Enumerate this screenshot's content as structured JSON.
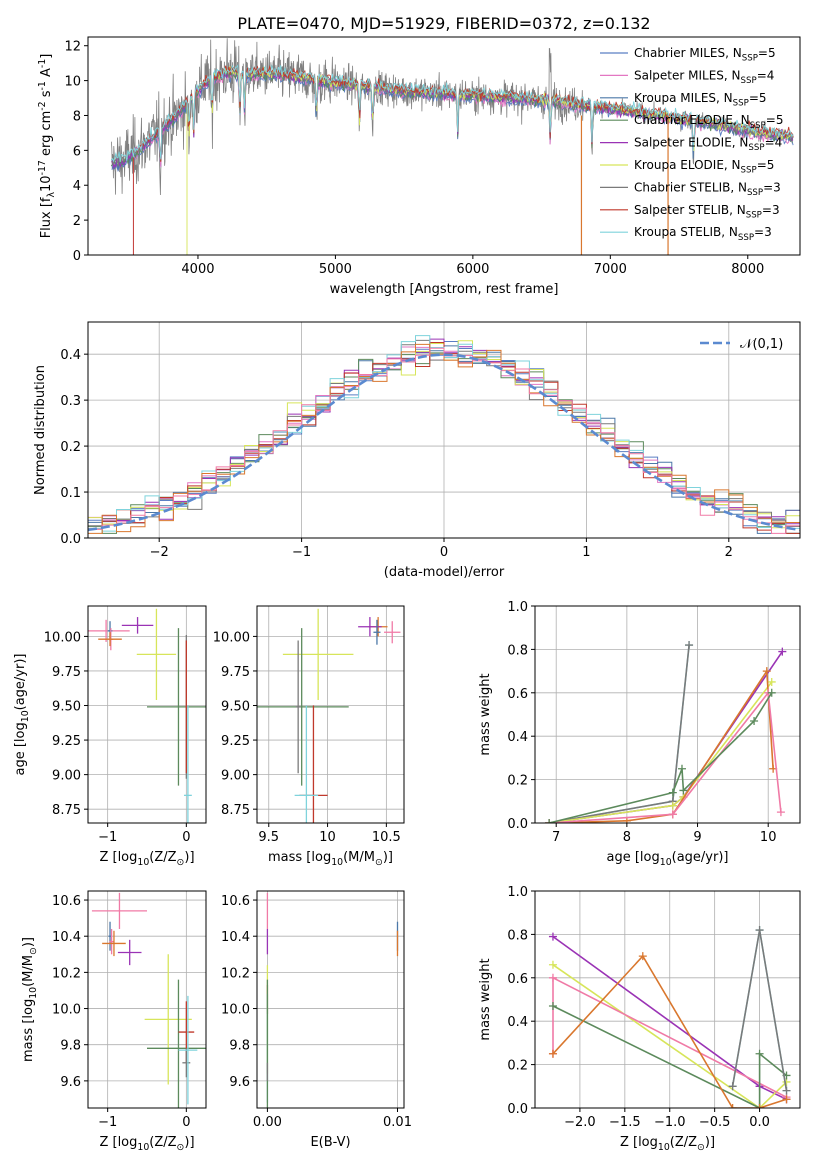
{
  "colors": {
    "chabrier_miles": "#5b7fc4",
    "salpeter_miles": "#e377c2",
    "kroupa_miles": "#4c78a8",
    "chabrier_elodie": "#5c8a5c",
    "salpeter_elodie": "#9a33b5",
    "kroupa_elodie": "#d7e55a",
    "chabrier_stelib": "#7a7a7a",
    "salpeter_stelib": "#c0392b",
    "kroupa_stelib": "#7fd3dc",
    "orange": "#d9772e",
    "pink": "#f07aa6",
    "normal": "#5b8ad0",
    "grid": "#b0b0b0"
  },
  "chart_data": [
    {
      "id": "spectrum",
      "type": "line",
      "title": "PLATE=0470, MJD=51929, FIBERID=0372, z=0.132",
      "xlabel": "wavelength [Angstrom, rest frame]",
      "ylabel": "Flux [f$_\\lambda$10$^{-17}$ erg cm$^{-2}$ s$^{-1}$ A$^{-1}$]",
      "xlim": [
        3200,
        8380
      ],
      "ylim": [
        0,
        12.5
      ],
      "xticks": [
        4000,
        5000,
        6000,
        7000,
        8000
      ],
      "yticks": [
        0,
        2,
        4,
        6,
        8,
        10,
        12
      ],
      "grid": false,
      "legend_position": "top-right",
      "series": [
        {
          "name": "Chabrier MILES, N$_{SSP}$=5",
          "color_key": "chabrier_miles"
        },
        {
          "name": "Salpeter MILES, N$_{SSP}$=4",
          "color_key": "salpeter_miles"
        },
        {
          "name": "Kroupa MILES, N$_{SSP}$=5",
          "color_key": "kroupa_miles"
        },
        {
          "name": "Chabrier ELODIE, N$_{SSP}$=5",
          "color_key": "chabrier_elodie"
        },
        {
          "name": "Salpeter ELODIE, N$_{SSP}$=4",
          "color_key": "salpeter_elodie"
        },
        {
          "name": "Kroupa ELODIE, N$_{SSP}$=5",
          "color_key": "kroupa_elodie"
        },
        {
          "name": "Chabrier STELIB, N$_{SSP}$=3",
          "color_key": "chabrier_stelib"
        },
        {
          "name": "Salpeter STELIB, N$_{SSP}$=3",
          "color_key": "salpeter_stelib"
        },
        {
          "name": "Kroupa STELIB, N$_{SSP}$=3",
          "color_key": "kroupa_stelib"
        }
      ],
      "model_continuum": {
        "x": [
          3350,
          3450,
          3550,
          3650,
          3750,
          3850,
          3950,
          4050,
          4150,
          4250,
          4350,
          4500,
          4650,
          4800,
          4950,
          5100,
          5300,
          5500,
          5700,
          5900,
          6100,
          6300,
          6500,
          6700,
          6900,
          7100,
          7300,
          7500,
          7700,
          7900,
          8100,
          8300
        ],
        "y": [
          5.2,
          5.4,
          5.9,
          6.6,
          7.3,
          8.0,
          9.0,
          9.8,
          10.3,
          10.5,
          10.4,
          10.4,
          10.3,
          10.1,
          9.9,
          9.8,
          9.6,
          9.4,
          9.3,
          9.2,
          9.1,
          9.0,
          8.9,
          8.7,
          8.5,
          8.3,
          8.1,
          7.8,
          7.6,
          7.3,
          7.0,
          6.8
        ]
      }
    },
    {
      "id": "residuals",
      "type": "line",
      "xlabel": "(data-model)/error",
      "ylabel": "Normed distribution",
      "xlim": [
        -2.5,
        2.5
      ],
      "ylim": [
        0,
        0.47
      ],
      "xticks": [
        -2,
        -1,
        0,
        1,
        2
      ],
      "yticks": [
        0.0,
        0.1,
        0.2,
        0.3,
        0.4
      ],
      "grid": true,
      "legend_position": "top-right",
      "legend": "$\\mathcal{N}(0,1)$",
      "bin_width": 0.1
    },
    {
      "id": "age_vs_Z",
      "type": "scatter",
      "xlabel": "Z [log$_{10}$(Z/Z$_\\odot$)]",
      "ylabel": "age  [log$_{10}$(age/yr)]",
      "xlim": [
        -1.25,
        0.25
      ],
      "ylim": [
        8.65,
        10.22
      ],
      "xticks": [
        -1,
        0
      ],
      "yticks": [
        8.75,
        9.0,
        9.25,
        9.5,
        9.75,
        10.0
      ],
      "grid": true,
      "points": [
        {
          "x": -1.02,
          "y": 10.04,
          "xerr": 0.3,
          "yerr": 0.08,
          "c": "pink"
        },
        {
          "x": -0.97,
          "y": 10.04,
          "xerr": 0.03,
          "yerr": 0.07,
          "c": "kroupa_miles"
        },
        {
          "x": -0.96,
          "y": 9.98,
          "xerr": 0.03,
          "yerr": 0.08,
          "c": "pink"
        },
        {
          "x": -0.97,
          "y": 9.98,
          "xerr": 0.15,
          "yerr": 0.05,
          "c": "orange"
        },
        {
          "x": -0.62,
          "y": 10.08,
          "xerr": 0.2,
          "yerr": 0.06,
          "c": "salpeter_elodie"
        },
        {
          "x": -0.38,
          "y": 9.87,
          "xerr": 0.25,
          "yerr": 0.33,
          "c": "kroupa_elodie"
        },
        {
          "x": -0.1,
          "y": 9.49,
          "xerr": 0.4,
          "yerr": 0.57,
          "c": "chabrier_elodie"
        },
        {
          "x": 0.0,
          "y": 9.49,
          "xerr": 0.01,
          "yerr": 0.52,
          "c": "chabrier_stelib"
        },
        {
          "x": 0.02,
          "y": 8.85,
          "xerr": 0.05,
          "yerr": 0.65,
          "c": "kroupa_stelib"
        },
        {
          "x": 0.0,
          "y": 9.49,
          "xerr": 0.01,
          "yerr": 0.48,
          "c": "salpeter_stelib"
        }
      ]
    },
    {
      "id": "age_vs_mass",
      "type": "scatter",
      "xlabel": "mass [log$_{10}$(M/M$_\\odot$)]",
      "xlim": [
        9.4,
        10.65
      ],
      "ylim": [
        8.65,
        10.22
      ],
      "xticks": [
        9.5,
        10.0,
        10.5
      ],
      "yticks": [
        8.75,
        9.0,
        9.25,
        9.5,
        9.75,
        10.0
      ],
      "grid": true,
      "points": [
        {
          "x": 10.55,
          "y": 10.03,
          "xerr": 0.07,
          "yerr": 0.08,
          "c": "pink"
        },
        {
          "x": 10.43,
          "y": 10.07,
          "xerr": 0.08,
          "yerr": 0.07,
          "c": "orange"
        },
        {
          "x": 10.36,
          "y": 10.07,
          "xerr": 0.1,
          "yerr": 0.07,
          "c": "salpeter_elodie"
        },
        {
          "x": 10.42,
          "y": 10.03,
          "xerr": 0.03,
          "yerr": 0.09,
          "c": "kroupa_miles"
        },
        {
          "x": 9.92,
          "y": 9.87,
          "xerr": 0.3,
          "yerr": 0.33,
          "c": "kroupa_elodie"
        },
        {
          "x": 9.78,
          "y": 9.49,
          "xerr": 0.4,
          "yerr": 0.57,
          "c": "chabrier_elodie"
        },
        {
          "x": 9.88,
          "y": 8.85,
          "xerr": 0.12,
          "yerr": 0.65,
          "c": "salpeter_stelib"
        },
        {
          "x": 9.75,
          "y": 9.49,
          "xerr": 0.02,
          "yerr": 0.48,
          "c": "chabrier_stelib"
        },
        {
          "x": 9.82,
          "y": 8.85,
          "xerr": 0.1,
          "yerr": 0.65,
          "c": "kroupa_stelib"
        }
      ]
    },
    {
      "id": "weight_vs_age",
      "type": "line",
      "xlabel": "age  [log$_{10}$(age/yr)]",
      "ylabel": "mass weight",
      "xlim": [
        6.7,
        10.45
      ],
      "ylim": [
        0.0,
        1.0
      ],
      "xticks": [
        7,
        8,
        9,
        10
      ],
      "yticks": [
        0.0,
        0.2,
        0.4,
        0.6,
        0.8,
        1.0
      ],
      "grid": true,
      "series": [
        {
          "c": "kroupa_stelib",
          "x": [
            6.9,
            8.65,
            8.88
          ],
          "y": [
            0.0,
            0.1,
            0.82
          ]
        },
        {
          "c": "chabrier_stelib",
          "x": [
            6.9,
            8.65,
            8.88
          ],
          "y": [
            0.0,
            0.1,
            0.82
          ]
        },
        {
          "c": "salpeter_elodie",
          "x": [
            6.9,
            8.65,
            8.8,
            10.2
          ],
          "y": [
            0.0,
            0.08,
            0.12,
            0.79
          ]
        },
        {
          "c": "kroupa_elodie",
          "x": [
            6.9,
            8.65,
            8.8,
            10.05
          ],
          "y": [
            0.0,
            0.08,
            0.12,
            0.65
          ]
        },
        {
          "c": "orange",
          "x": [
            6.9,
            8.0,
            8.65,
            9.98,
            10.07
          ],
          "y": [
            0.0,
            0.01,
            0.04,
            0.7,
            0.25
          ]
        },
        {
          "c": "pink",
          "x": [
            6.9,
            8.65,
            10.0,
            10.18
          ],
          "y": [
            0.0,
            0.04,
            0.6,
            0.05
          ]
        },
        {
          "c": "chabrier_elodie",
          "x": [
            6.9,
            8.65,
            8.78,
            8.8,
            9.8,
            10.05
          ],
          "y": [
            0.0,
            0.14,
            0.25,
            0.15,
            0.47,
            0.6
          ]
        }
      ]
    },
    {
      "id": "mass_vs_Z",
      "type": "scatter",
      "xlabel": "Z [log$_{10}$(Z/Z$_\\odot$)]",
      "ylabel": "mass [log$_{10}$(M/M$_\\odot$)]",
      "xlim": [
        -1.25,
        0.25
      ],
      "ylim": [
        9.45,
        10.65
      ],
      "xticks": [
        -1,
        0
      ],
      "yticks": [
        9.6,
        9.8,
        10.0,
        10.2,
        10.4,
        10.6
      ],
      "grid": true,
      "points": [
        {
          "x": -0.85,
          "y": 10.54,
          "xerr": 0.35,
          "yerr": 0.1,
          "c": "pink"
        },
        {
          "x": -0.97,
          "y": 10.4,
          "xerr": 0.02,
          "yerr": 0.08,
          "c": "kroupa_miles"
        },
        {
          "x": -0.95,
          "y": 10.37,
          "xerr": 0.03,
          "yerr": 0.07,
          "c": "pink"
        },
        {
          "x": -0.92,
          "y": 10.36,
          "xerr": 0.15,
          "yerr": 0.07,
          "c": "orange"
        },
        {
          "x": -0.72,
          "y": 10.31,
          "xerr": 0.15,
          "yerr": 0.07,
          "c": "salpeter_elodie"
        },
        {
          "x": -0.23,
          "y": 9.94,
          "xerr": 0.3,
          "yerr": 0.36,
          "c": "kroupa_elodie"
        },
        {
          "x": -0.1,
          "y": 9.78,
          "xerr": 0.4,
          "yerr": 0.38,
          "c": "chabrier_elodie"
        },
        {
          "x": 0.0,
          "y": 9.87,
          "xerr": 0.1,
          "yerr": 0.17,
          "c": "salpeter_stelib"
        },
        {
          "x": 0.0,
          "y": 9.7,
          "xerr": 0.05,
          "yerr": 0.08,
          "c": "chabrier_stelib"
        },
        {
          "x": 0.02,
          "y": 9.77,
          "xerr": 0.12,
          "yerr": 0.3,
          "c": "kroupa_stelib"
        }
      ]
    },
    {
      "id": "mass_vs_ebv",
      "type": "scatter",
      "xlabel": "E(B-V)",
      "xlim": [
        -0.0008,
        0.0105
      ],
      "ylim": [
        9.45,
        10.65
      ],
      "xticks": [
        0.0,
        0.01
      ],
      "yticks": [
        9.6,
        9.8,
        10.0,
        10.2,
        10.4,
        10.6
      ],
      "grid": true,
      "points": [
        {
          "x": 0.0,
          "y": 10.54,
          "yerr": 0.1,
          "c": "pink"
        },
        {
          "x": 0.0,
          "y": 10.37,
          "yerr": 0.07,
          "c": "salpeter_elodie"
        },
        {
          "x": 0.0,
          "y": 10.05,
          "yerr": 0.08,
          "c": "salpeter_stelib"
        },
        {
          "x": 0.0,
          "y": 9.94,
          "yerr": 0.3,
          "c": "kroupa_elodie"
        },
        {
          "x": 0.0,
          "y": 9.78,
          "yerr": 0.3,
          "c": "kroupa_stelib"
        },
        {
          "x": 0.0,
          "y": 9.78,
          "yerr": 0.38,
          "c": "chabrier_elodie"
        },
        {
          "x": 0.0,
          "y": 9.65,
          "yerr": 0.05,
          "c": "chabrier_stelib"
        },
        {
          "x": 0.01,
          "y": 10.4,
          "yerr": 0.08,
          "c": "kroupa_miles"
        },
        {
          "x": 0.01,
          "y": 10.36,
          "yerr": 0.07,
          "c": "orange"
        }
      ]
    },
    {
      "id": "weight_vs_Z",
      "type": "line",
      "xlabel": "Z [log$_{10}$(Z/Z$_\\odot$)]",
      "ylabel": "mass weight",
      "xlim": [
        -2.5,
        0.45
      ],
      "ylim": [
        0.0,
        1.0
      ],
      "xticks": [
        -2.0,
        -1.5,
        -1.0,
        -0.5,
        0.0
      ],
      "yticks": [
        0.0,
        0.2,
        0.4,
        0.6,
        0.8,
        1.0
      ],
      "grid": true,
      "series": [
        {
          "c": "salpeter_elodie",
          "x": [
            -2.3,
            0.0,
            0.3
          ],
          "y": [
            0.79,
            0.1,
            0.04
          ]
        },
        {
          "c": "kroupa_elodie",
          "x": [
            -2.3,
            0.0,
            0.3
          ],
          "y": [
            0.66,
            0.0,
            0.12
          ]
        },
        {
          "c": "pink",
          "x": [
            -2.3,
            -2.3,
            0.3
          ],
          "y": [
            0.25,
            0.6,
            0.05
          ]
        },
        {
          "c": "chabrier_elodie",
          "x": [
            -2.3,
            -0.0,
            0.0,
            0.3
          ],
          "y": [
            0.47,
            0.0,
            0.25,
            0.15
          ]
        },
        {
          "c": "orange",
          "x": [
            -2.3,
            -1.3,
            -0.3,
            0.0,
            0.3
          ],
          "y": [
            0.25,
            0.7,
            0.0,
            0.0,
            0.04
          ]
        },
        {
          "c": "kroupa_stelib",
          "x": [
            -0.3,
            0.0,
            0.3
          ],
          "y": [
            0.1,
            0.82,
            0.08
          ]
        },
        {
          "c": "chabrier_stelib",
          "x": [
            -0.3,
            0.0,
            0.3
          ],
          "y": [
            0.1,
            0.82,
            0.08
          ]
        }
      ]
    }
  ]
}
